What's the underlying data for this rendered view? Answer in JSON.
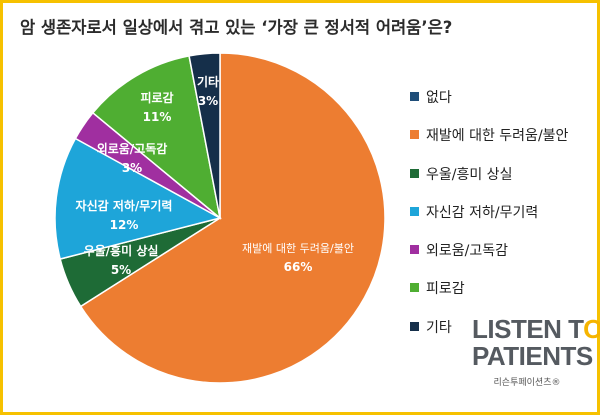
{
  "title": "암 생존자로서 일상에서 겪고 있는 ‘가장 큰 정서적 어려움’은?",
  "chart_data": {
    "type": "pie",
    "title": "암 생존자로서 일상에서 겪고 있는 ‘가장 큰 정서적 어려움’은?",
    "legend_position": "right",
    "slices": [
      {
        "name": "없다",
        "value": 0,
        "color": "#1f4e79",
        "label": "",
        "pct": ""
      },
      {
        "name": "재발에 대한 두려움/불안",
        "value": 66,
        "color": "#ed7d31",
        "label": "재발에 대한 두려움/불안",
        "pct": "66%"
      },
      {
        "name": "우울/흥미 상실",
        "value": 5,
        "color": "#1e6b36",
        "label": "우울/흥미 상실",
        "pct": "5%"
      },
      {
        "name": "자신감 저하/무기력",
        "value": 12,
        "color": "#1ea5d9",
        "label": "자신감 저하/무기력",
        "pct": "12%"
      },
      {
        "name": "외로움/고독감",
        "value": 3,
        "color": "#a02fa0",
        "label": "외로움/고독감",
        "pct": "3%"
      },
      {
        "name": "피로감",
        "value": 11,
        "color": "#4fae32",
        "label": "피로감",
        "pct": "11%"
      },
      {
        "name": "기타",
        "value": 3,
        "color": "#152f4a",
        "label": "기타",
        "pct": "3%"
      }
    ]
  },
  "logo": {
    "line1": "LISTEN TO",
    "line2": "PATIENTS",
    "subtitle": "리슨투페이션츠®"
  }
}
